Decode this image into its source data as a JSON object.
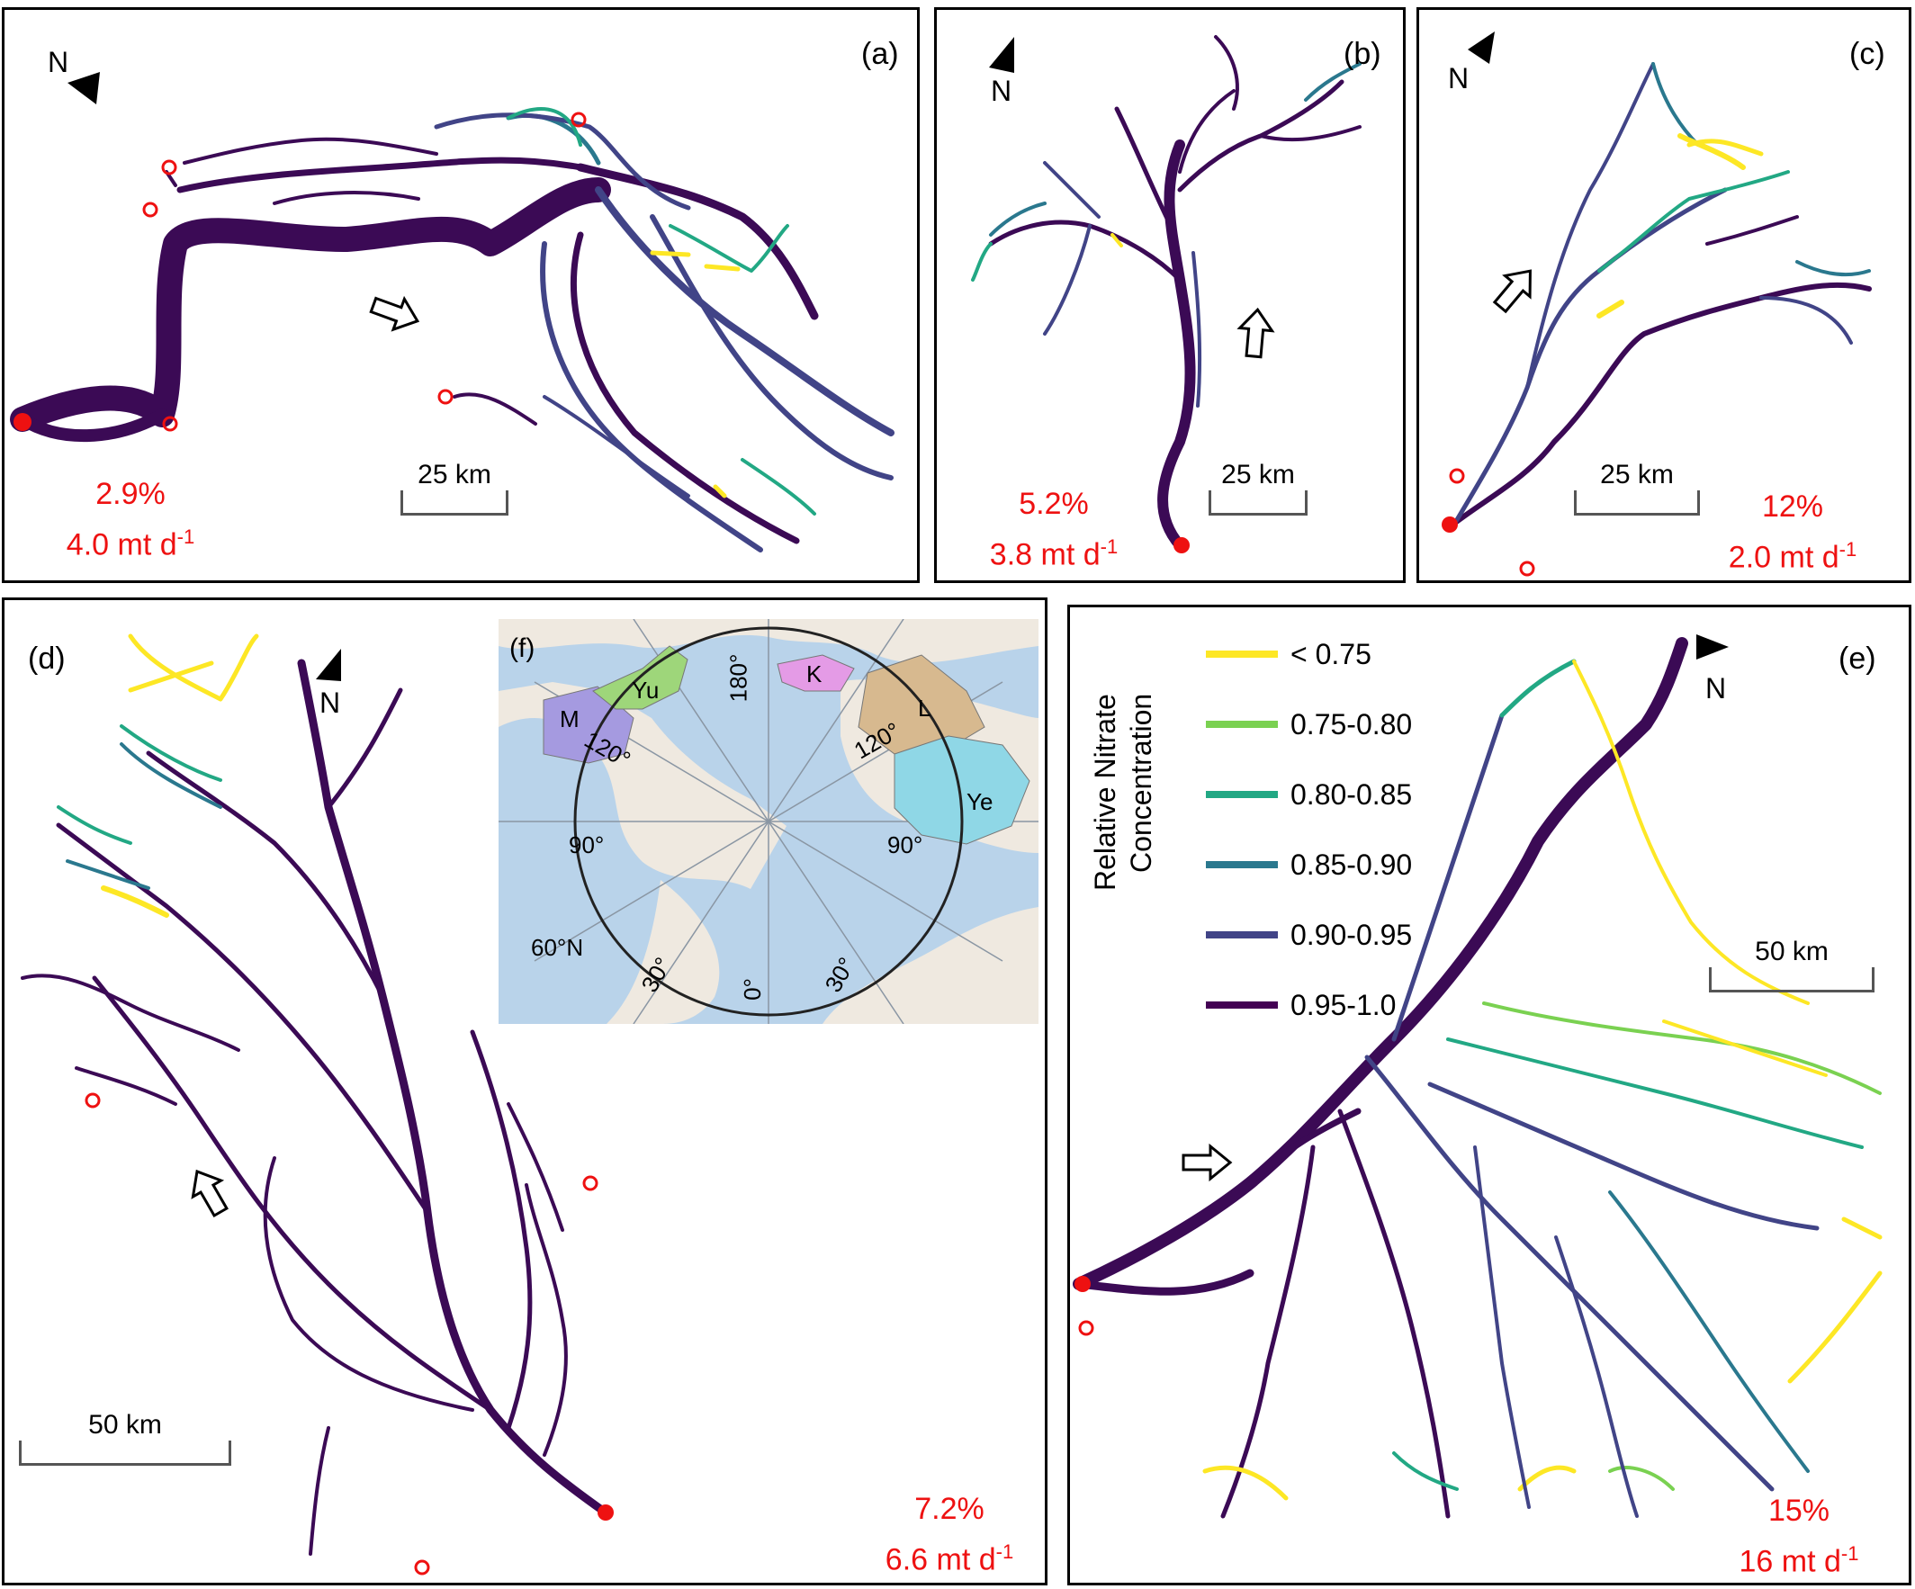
{
  "panels": {
    "a": {
      "label": "(a)",
      "percent": "2.9%",
      "flux": "4.0 mt d",
      "flux_exp": "-1",
      "scale": "25 km",
      "north": "N"
    },
    "b": {
      "label": "(b)",
      "percent": "5.2%",
      "flux": "3.8 mt d",
      "flux_exp": "-1",
      "scale": "25 km",
      "north": "N"
    },
    "c": {
      "label": "(c)",
      "percent": "12%",
      "flux": "2.0 mt d",
      "flux_exp": "-1",
      "scale": "25 km",
      "north": "N"
    },
    "d": {
      "label": "(d)",
      "percent": "7.2%",
      "flux": "6.6 mt d",
      "flux_exp": "-1",
      "scale": "50 km",
      "north": "N"
    },
    "e": {
      "label": "(e)",
      "percent": "15%",
      "flux": "16 mt d",
      "flux_exp": "-1",
      "scale": "50 km",
      "north": "N"
    },
    "f": {
      "label": "(f)",
      "basins": [
        "M",
        "Yu",
        "K",
        "L",
        "Ye"
      ],
      "graticule": [
        "180°",
        "120°",
        "120°",
        "90°",
        "90°",
        "60°N",
        "30°",
        "0°",
        "30°"
      ]
    }
  },
  "legend": {
    "title_line1": "Relative Nitrate",
    "title_line2": "Concentration",
    "items": [
      {
        "label": "< 0.75",
        "color": "#fde725"
      },
      {
        "label": "0.75-0.80",
        "color": "#7ad151"
      },
      {
        "label": "0.80-0.85",
        "color": "#22a884"
      },
      {
        "label": "0.85-0.90",
        "color": "#2a788e"
      },
      {
        "label": "0.90-0.95",
        "color": "#414487"
      },
      {
        "label": "0.95-1.0",
        "color": "#440154"
      }
    ]
  },
  "colors": {
    "outlet": "#ee1111",
    "network_main": "#3b0a55"
  }
}
